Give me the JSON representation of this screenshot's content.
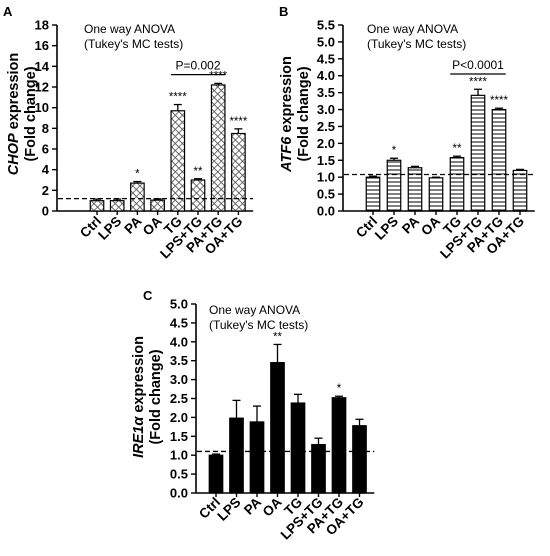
{
  "chart_data": [
    {
      "panel": "A",
      "type": "bar",
      "ylabel_italic": "CHOP",
      "ylabel_rest": " expression",
      "ylabel_line2": "(Fold change)",
      "annotation_line1": "One way ANOVA",
      "annotation_line2": "(Tukey's MC tests)",
      "categories": [
        "Ctrl",
        "LPS",
        "PA",
        "OA",
        "TG",
        "LPS+TG",
        "PA+TG",
        "OA+TG"
      ],
      "values": [
        1.0,
        1.0,
        2.7,
        1.05,
        9.7,
        3.0,
        12.2,
        7.5
      ],
      "errors": [
        0.15,
        0.15,
        0.15,
        0.12,
        0.6,
        0.12,
        0.15,
        0.45
      ],
      "significance": [
        "",
        "",
        "*",
        "",
        "****",
        "**",
        "****",
        "****"
      ],
      "ylim": [
        0,
        18
      ],
      "yticks": [
        0,
        2,
        4,
        6,
        8,
        10,
        12,
        14,
        16,
        18
      ],
      "baseline": 1.2,
      "bracket": {
        "from": 4,
        "to": 6,
        "y": 13.2,
        "label": "P=0.002"
      },
      "pattern": "crosshatch"
    },
    {
      "panel": "B",
      "type": "bar",
      "ylabel_italic": "ATF6",
      "ylabel_rest": " expression",
      "ylabel_line2": "(Fold change)",
      "annotation_line1": "One way ANOVA",
      "annotation_line2": "(Tukey's MC tests)",
      "categories": [
        "Ctrl",
        "LPS",
        "PA",
        "OA",
        "TG",
        "LPS+TG",
        "PA+TG",
        "OA+TG"
      ],
      "values": [
        1.0,
        1.5,
        1.28,
        0.98,
        1.58,
        3.42,
        3.0,
        1.2
      ],
      "errors": [
        0.03,
        0.06,
        0.04,
        0.02,
        0.04,
        0.18,
        0.04,
        0.03
      ],
      "significance": [
        "",
        "*",
        "",
        "",
        "**",
        "****",
        "****",
        ""
      ],
      "ylim": [
        0,
        5.5
      ],
      "yticks": [
        0.0,
        0.5,
        1.0,
        1.5,
        2.0,
        2.5,
        3.0,
        3.5,
        4.0,
        4.5,
        5.0,
        5.5
      ],
      "baseline": 1.08,
      "bracket": {
        "from": 4,
        "to": 6,
        "y": 4.05,
        "label": "P<0.0001"
      },
      "pattern": "horizontal"
    },
    {
      "panel": "C",
      "type": "bar",
      "ylabel_italic": "IRE1α",
      "ylabel_rest": " expression",
      "ylabel_line2": "(Fold change)",
      "annotation_line1": "One way ANOVA",
      "annotation_line2": "(Tukey's MC tests)",
      "categories": [
        "Ctrl",
        "LPS",
        "PA",
        "OA",
        "TG",
        "LPS+TG",
        "PA+TG",
        "OA+TG"
      ],
      "values": [
        1.0,
        1.98,
        1.88,
        3.45,
        2.38,
        1.28,
        2.52,
        1.78
      ],
      "errors": [
        0.03,
        0.47,
        0.42,
        0.48,
        0.23,
        0.17,
        0.04,
        0.17
      ],
      "significance": [
        "",
        "",
        "",
        "**",
        "",
        "",
        "*",
        ""
      ],
      "ylim": [
        0,
        5.0
      ],
      "yticks": [
        0.0,
        0.5,
        1.0,
        1.5,
        2.0,
        2.5,
        3.0,
        3.5,
        4.0,
        4.5,
        5.0
      ],
      "baseline": 1.1,
      "pattern": "solid"
    }
  ]
}
